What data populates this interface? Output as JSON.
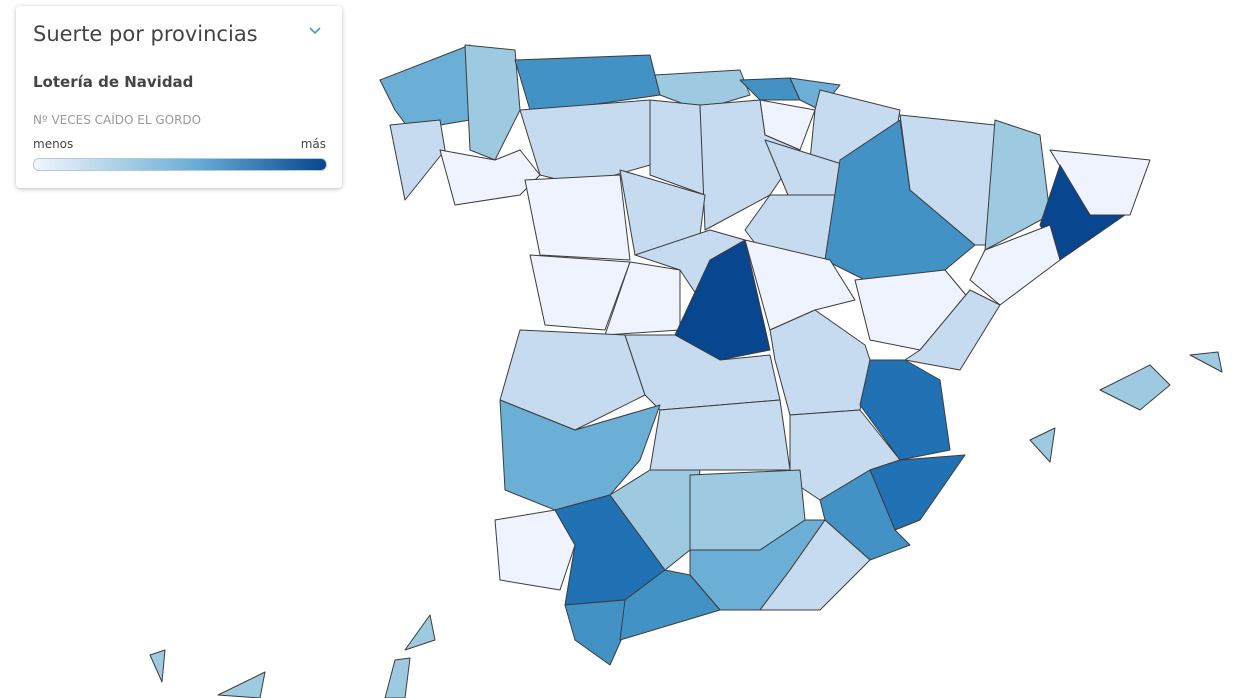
{
  "legend": {
    "title": "Suerte por provincias",
    "subtitle": "Lotería de Navidad",
    "measure": "Nº VECES CAÍDO EL GORDO",
    "min_label": "menos",
    "max_label": "más"
  }
}
